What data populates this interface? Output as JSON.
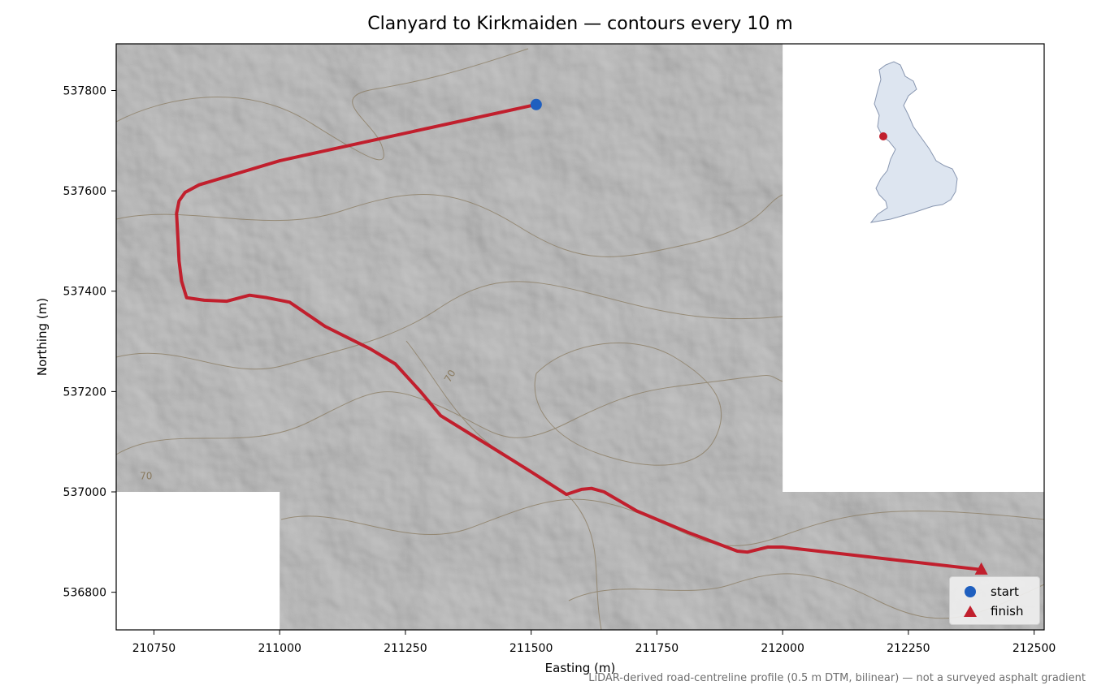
{
  "title": "Clanyard to Kirkmaiden — contours every 10 m",
  "axes": {
    "xlabel": "Easting (m)",
    "ylabel": "Northing (m)",
    "xlim": [
      210675,
      212520
    ],
    "ylim": [
      536725,
      537893
    ],
    "xticks": [
      210750,
      211000,
      211250,
      211500,
      211750,
      212000,
      212250,
      212500
    ],
    "yticks": [
      536800,
      537000,
      537200,
      537400,
      537600,
      537800
    ]
  },
  "no_data_areas": [
    {
      "x": [
        210675,
        211000
      ],
      "y": [
        536725,
        537000
      ]
    },
    {
      "x": [
        212000,
        212520
      ],
      "y": [
        537000,
        537893
      ]
    }
  ],
  "route": {
    "color": "#c11f2d",
    "points": [
      [
        211510,
        537772
      ],
      [
        211000,
        537660
      ],
      [
        210840,
        537612
      ],
      [
        210812,
        537597
      ],
      [
        210800,
        537580
      ],
      [
        210795,
        537555
      ],
      [
        210798,
        537500
      ],
      [
        210800,
        537460
      ],
      [
        210805,
        537420
      ],
      [
        210815,
        537387
      ],
      [
        210850,
        537382
      ],
      [
        210895,
        537380
      ],
      [
        210940,
        537392
      ],
      [
        210975,
        537387
      ],
      [
        211020,
        537378
      ],
      [
        211090,
        537330
      ],
      [
        211130,
        537310
      ],
      [
        211180,
        537285
      ],
      [
        211230,
        537255
      ],
      [
        211280,
        537200
      ],
      [
        211320,
        537152
      ],
      [
        211420,
        537090
      ],
      [
        211500,
        537040
      ],
      [
        211570,
        536995
      ],
      [
        211600,
        537005
      ],
      [
        211620,
        537007
      ],
      [
        211645,
        537000
      ],
      [
        211710,
        536962
      ],
      [
        211810,
        536920
      ],
      [
        211910,
        536882
      ],
      [
        211930,
        536880
      ],
      [
        211970,
        536890
      ],
      [
        212000,
        536890
      ],
      [
        212395,
        536845
      ]
    ]
  },
  "contour_labels": [
    {
      "text": "70",
      "x": 211338,
      "y": 537217
    },
    {
      "text": "70",
      "x": 210722,
      "y": 537025
    }
  ],
  "markers": {
    "start": {
      "label": "start",
      "x": 211510,
      "y": 537772,
      "color": "#1f5fbf"
    },
    "finish": {
      "label": "finish",
      "x": 212395,
      "y": 536845,
      "color": "#c11f2d"
    }
  },
  "inset": {
    "fill": "#dde5f0",
    "outline": "#8896b0",
    "location_color": "#c11f2d"
  },
  "colors": {
    "hillshade": "#a9a9a9",
    "contour": "#8a7b60"
  },
  "footnote": "LiDAR-derived road-centreline profile (0.5 m DTM, bilinear) — not a surveyed asphalt gradient"
}
